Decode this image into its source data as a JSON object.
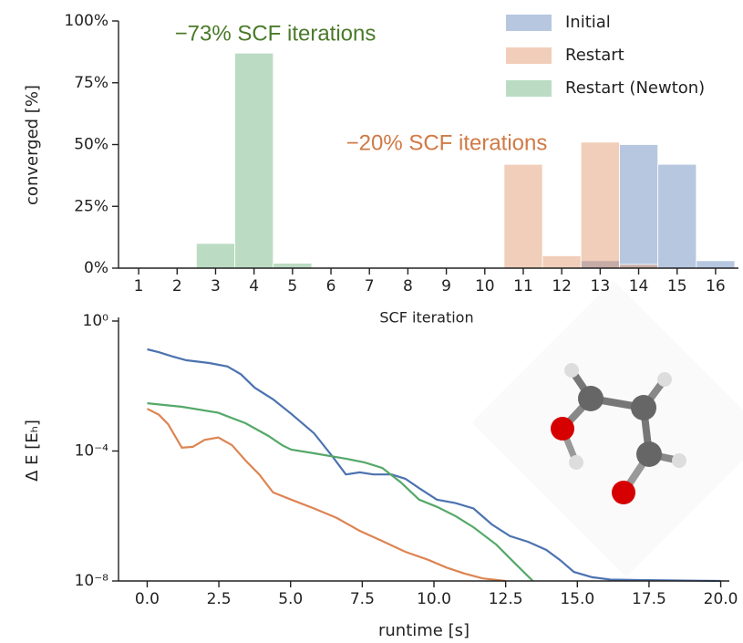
{
  "chart_data": [
    {
      "type": "bar",
      "xlabel": "SCF iteration",
      "ylabel": "converged [%]",
      "categories": [
        "1",
        "2",
        "3",
        "4",
        "5",
        "6",
        "7",
        "8",
        "9",
        "10",
        "11",
        "12",
        "13",
        "14",
        "15",
        "16"
      ],
      "series": [
        {
          "name": "Initial",
          "color": "#4c72b0",
          "values": [
            0,
            0,
            0,
            0,
            0,
            0,
            0,
            0,
            0,
            0,
            0,
            0,
            3,
            50,
            42,
            3
          ]
        },
        {
          "name": "Restart",
          "color": "#dd8452",
          "values": [
            0,
            0,
            0,
            0,
            0,
            0,
            0,
            0,
            0,
            0,
            42,
            5,
            51,
            1.5,
            0,
            0
          ]
        },
        {
          "name": "Restart (Newton)",
          "color": "#55a868",
          "values": [
            0,
            0,
            10,
            87,
            2,
            0,
            0,
            0,
            0,
            0,
            0,
            0,
            0,
            0,
            0,
            0
          ]
        }
      ],
      "ylim": [
        0,
        100
      ],
      "yticks": [
        {
          "value": 0,
          "label": "0%"
        },
        {
          "value": 25,
          "label": "25%"
        },
        {
          "value": 50,
          "label": "50%"
        },
        {
          "value": 75,
          "label": "75%"
        },
        {
          "value": 100,
          "label": "100%"
        }
      ],
      "legend": "upper right",
      "grid": false,
      "annotations": [
        {
          "text": "−73% SCF iterations",
          "color": "#4a7a2a"
        },
        {
          "text": "−20% SCF iterations",
          "color": "#d07a45"
        }
      ]
    },
    {
      "type": "line",
      "xlabel": "runtime [s]",
      "ylabel": "Δ E [Eₕ]",
      "yscale": "log",
      "grid": false,
      "xlim": [
        -1,
        20.3
      ],
      "ylim": [
        1e-08,
        1
      ],
      "xticks": [
        {
          "value": 0,
          "label": "0.0"
        },
        {
          "value": 2.5,
          "label": "2.5"
        },
        {
          "value": 5,
          "label": "5.0"
        },
        {
          "value": 7.5,
          "label": "7.5"
        },
        {
          "value": 10,
          "label": "10.0"
        },
        {
          "value": 12.5,
          "label": "12.5"
        },
        {
          "value": 15,
          "label": "15.0"
        },
        {
          "value": 17.5,
          "label": "17.5"
        },
        {
          "value": 20,
          "label": "20.0"
        }
      ],
      "yticks": [
        {
          "value": 1,
          "label": "10⁰"
        },
        {
          "value": 0.0001,
          "label": "10⁻⁴"
        },
        {
          "value": 1e-08,
          "label": "10⁻⁸"
        }
      ],
      "series": [
        {
          "color": "#4c72b0",
          "x": [
            0,
            0.41,
            0.89,
            1.37,
            2.16,
            2.8,
            3.27,
            3.75,
            4.39,
            5.02,
            5.82,
            6.45,
            6.93,
            7.41,
            7.89,
            8.52,
            9.0,
            9.48,
            10.1,
            10.75,
            11.38,
            12.02,
            12.65,
            13.29,
            13.92,
            14.4,
            14.88,
            15.52,
            16.15,
            17.1,
            20.0
          ],
          "values": [
            0.135,
            0.11,
            0.081,
            0.062,
            0.051,
            0.04,
            0.023,
            0.0089,
            0.0039,
            0.0014,
            0.00035,
            7e-05,
            1.9e-05,
            2.2e-05,
            1.9e-05,
            1.9e-05,
            1.4e-05,
            7.2e-06,
            3.2e-06,
            2.5e-06,
            1.7e-06,
            5.5e-07,
            2.4e-07,
            1.6e-07,
            9e-08,
            4.4e-08,
            1.9e-08,
            1.3e-08,
            1.1e-08,
            1.07e-08,
            1e-08
          ]
        },
        {
          "color": "#dd8452",
          "x": [
            0,
            0.41,
            0.73,
            1.21,
            1.59,
            2.0,
            2.48,
            2.96,
            3.43,
            3.91,
            4.39,
            5.02,
            5.82,
            6.61,
            7.41,
            8.2,
            9.0,
            9.79,
            10.43,
            11.06,
            11.7,
            12.5
          ],
          "values": [
            0.002,
            0.0013,
            0.00067,
            0.000126,
            0.000135,
            0.00022,
            0.00026,
            0.00015,
            5.1e-05,
            1.9e-05,
            5.3e-06,
            3.2e-06,
            1.7e-06,
            8.7e-07,
            3.5e-07,
            1.7e-07,
            7.9e-08,
            4.5e-08,
            2.6e-08,
            1.7e-08,
            1.2e-08,
            1e-08
          ]
        },
        {
          "color": "#55a868",
          "x": [
            0,
            1.21,
            2.48,
            3.43,
            4.23,
            4.71,
            5.02,
            5.82,
            6.93,
            7.57,
            8.2,
            8.84,
            9.48,
            10.11,
            10.75,
            11.38,
            12.18,
            12.81,
            13.45
          ],
          "values": [
            0.00296,
            0.0023,
            0.0015,
            0.00072,
            0.00029,
            0.00015,
            0.00011,
            8.5e-05,
            5.8e-05,
            4.5e-05,
            3e-05,
            1.1e-05,
            3.2e-06,
            1.9e-06,
            1e-06,
            4.5e-07,
            1.3e-07,
            3.6e-08,
            1e-08
          ]
        }
      ]
    }
  ]
}
